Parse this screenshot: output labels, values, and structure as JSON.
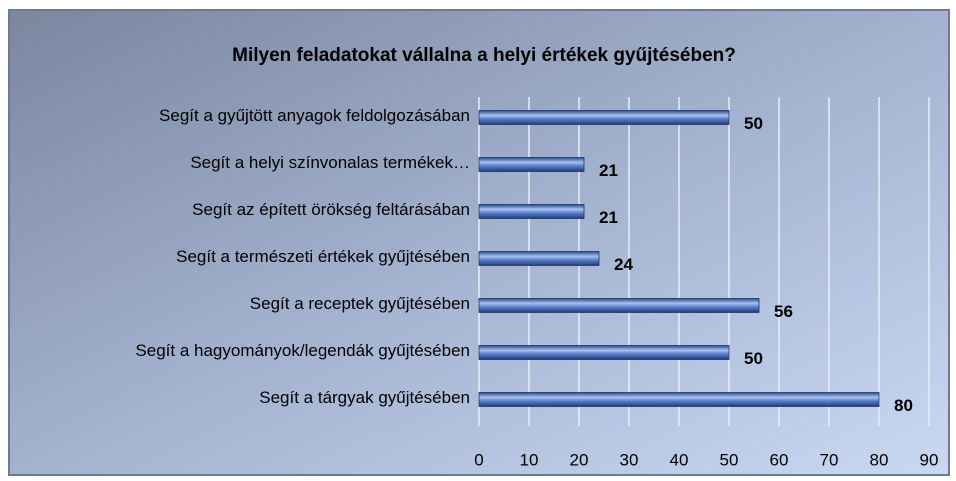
{
  "chart_data": {
    "type": "barh",
    "title": "Milyen feladatokat vállalna a helyi értékek gyűjtésében?",
    "categories": [
      "Segít a gyűjtött anyagok feldolgozásában",
      "Segít a helyi színvonalas termékek…",
      "Segít az épített örökség feltárásában",
      "Segít a természeti értékek gyűjtésében",
      "Segít a receptek gyűjtésében",
      "Segít a hagyományok/legendák gyűjtésében",
      "Segít a tárgyak gyűjtésében"
    ],
    "values": [
      50,
      21,
      21,
      24,
      56,
      50,
      80
    ],
    "color": "#4a70c0",
    "xlim": [
      0,
      90
    ],
    "xticks": [
      0,
      10,
      20,
      30,
      40,
      50,
      60,
      70,
      80,
      90
    ],
    "grid": true
  }
}
